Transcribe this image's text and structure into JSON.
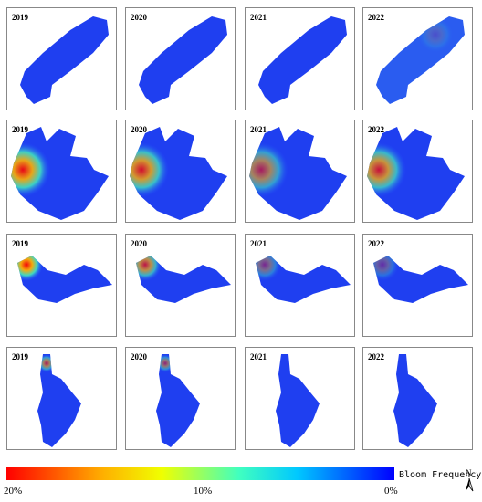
{
  "panels": [
    [
      "2019",
      "2020",
      "2021",
      "2022"
    ],
    [
      "2019",
      "2020",
      "2021",
      "2022"
    ],
    [
      "2019",
      "2020",
      "2021",
      "2022"
    ],
    [
      "2019",
      "2020",
      "2021",
      "2022"
    ]
  ],
  "colorbar": {
    "labels": [
      "20%",
      "10%",
      "0%"
    ],
    "title": "Bloom Frequency"
  },
  "north": "N"
}
